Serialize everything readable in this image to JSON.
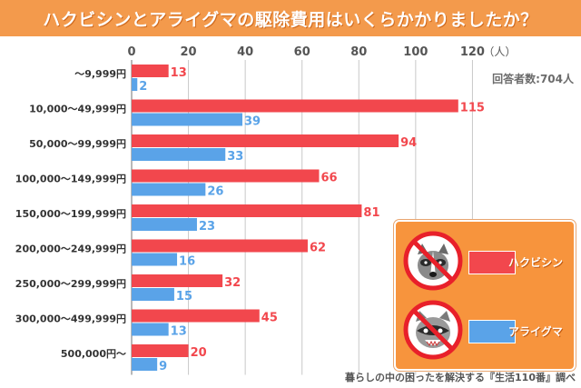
{
  "title": "ハクビシンとアライグマの駆除費用はいくらかかりましたか？",
  "note": "回答者数:704人",
  "source": "暮らしの中の困ったを解決する『生活110番』調べ",
  "colors": {
    "hakubishin": "#f2474d",
    "araiguma": "#5aa3e8",
    "accent": "#f39a4c"
  },
  "icons": [
    "no-raccoon-dog-icon",
    "no-raccoon-icon"
  ],
  "chart_data": {
    "type": "bar",
    "orientation": "horizontal",
    "categories": [
      "～9,999円",
      "10,000～49,999円",
      "50,000～99,999円",
      "100,000～149,999円",
      "150,000～199,999円",
      "200,000～249,999円",
      "250,000～299,999円",
      "300,000～499,999円",
      "500,000円～"
    ],
    "series": [
      {
        "name": "ハクビシン",
        "values": [
          13,
          115,
          94,
          66,
          81,
          62,
          32,
          45,
          20
        ]
      },
      {
        "name": "アライグマ",
        "values": [
          2,
          39,
          33,
          26,
          23,
          16,
          15,
          13,
          9
        ]
      }
    ],
    "xlim": [
      0,
      140
    ],
    "xticks": [
      0,
      20,
      40,
      60,
      80,
      100,
      120
    ],
    "unit_label": "（人）",
    "grid": true,
    "legend_position": "bottom-right"
  }
}
